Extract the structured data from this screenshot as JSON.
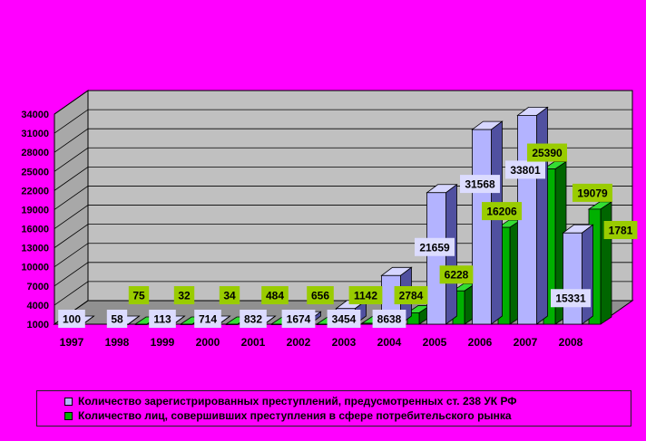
{
  "colors": {
    "background": "#ff00ff",
    "series1_front": "#b3b3ff",
    "series1_side": "#5050a0",
    "series1_top": "#d6d6ff",
    "series2_front": "#00b000",
    "series2_side": "#006600",
    "series2_top": "#33dd33",
    "label1_bg": "#dcdcff",
    "label2_bg": "#99cc00",
    "wall": "#c0c0c0",
    "floor": "#909090"
  },
  "chart_data": {
    "type": "bar",
    "title": "",
    "xlabel": "",
    "ylabel": "",
    "ylim": [
      1000,
      34000
    ],
    "yticks": [
      1000,
      4000,
      7000,
      10000,
      13000,
      16000,
      19000,
      22000,
      25000,
      28000,
      31000,
      34000
    ],
    "grid": true,
    "legend_position": "bottom",
    "categories": [
      "1997",
      "1998",
      "1999",
      "2000",
      "2001",
      "2002",
      "2003",
      "2004",
      "2005",
      "2006",
      "2007",
      "2008"
    ],
    "series": [
      {
        "name": "Количество зарегистрированных преступлений, предусмотренных ст. 238 УК РФ",
        "values": [
          100,
          58,
          113,
          714,
          832,
          1674,
          3454,
          8638,
          21659,
          31568,
          33801,
          15331
        ]
      },
      {
        "name": "Количество лиц, совершивших преступления в сфере потребительского рынка",
        "values": [
          null,
          75,
          32,
          34,
          484,
          656,
          1142,
          2784,
          6228,
          16206,
          25390,
          19079
        ],
        "extra_labels": [
          "1781"
        ]
      }
    ]
  }
}
